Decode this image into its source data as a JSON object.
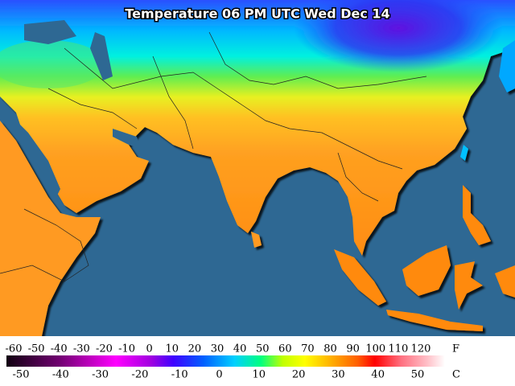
{
  "title": "Temperature 06 PM UTC Wed Dec 14",
  "scale": {
    "fahrenheit": {
      "labels": [
        -60,
        -50,
        -40,
        -30,
        -20,
        -10,
        0,
        10,
        20,
        30,
        40,
        50,
        60,
        70,
        80,
        90,
        100,
        110,
        120
      ],
      "unit": "F"
    },
    "celsius": {
      "labels": [
        -50,
        -40,
        -30,
        -20,
        -10,
        0,
        10,
        20,
        30,
        40,
        50
      ],
      "unit": "C"
    }
  }
}
